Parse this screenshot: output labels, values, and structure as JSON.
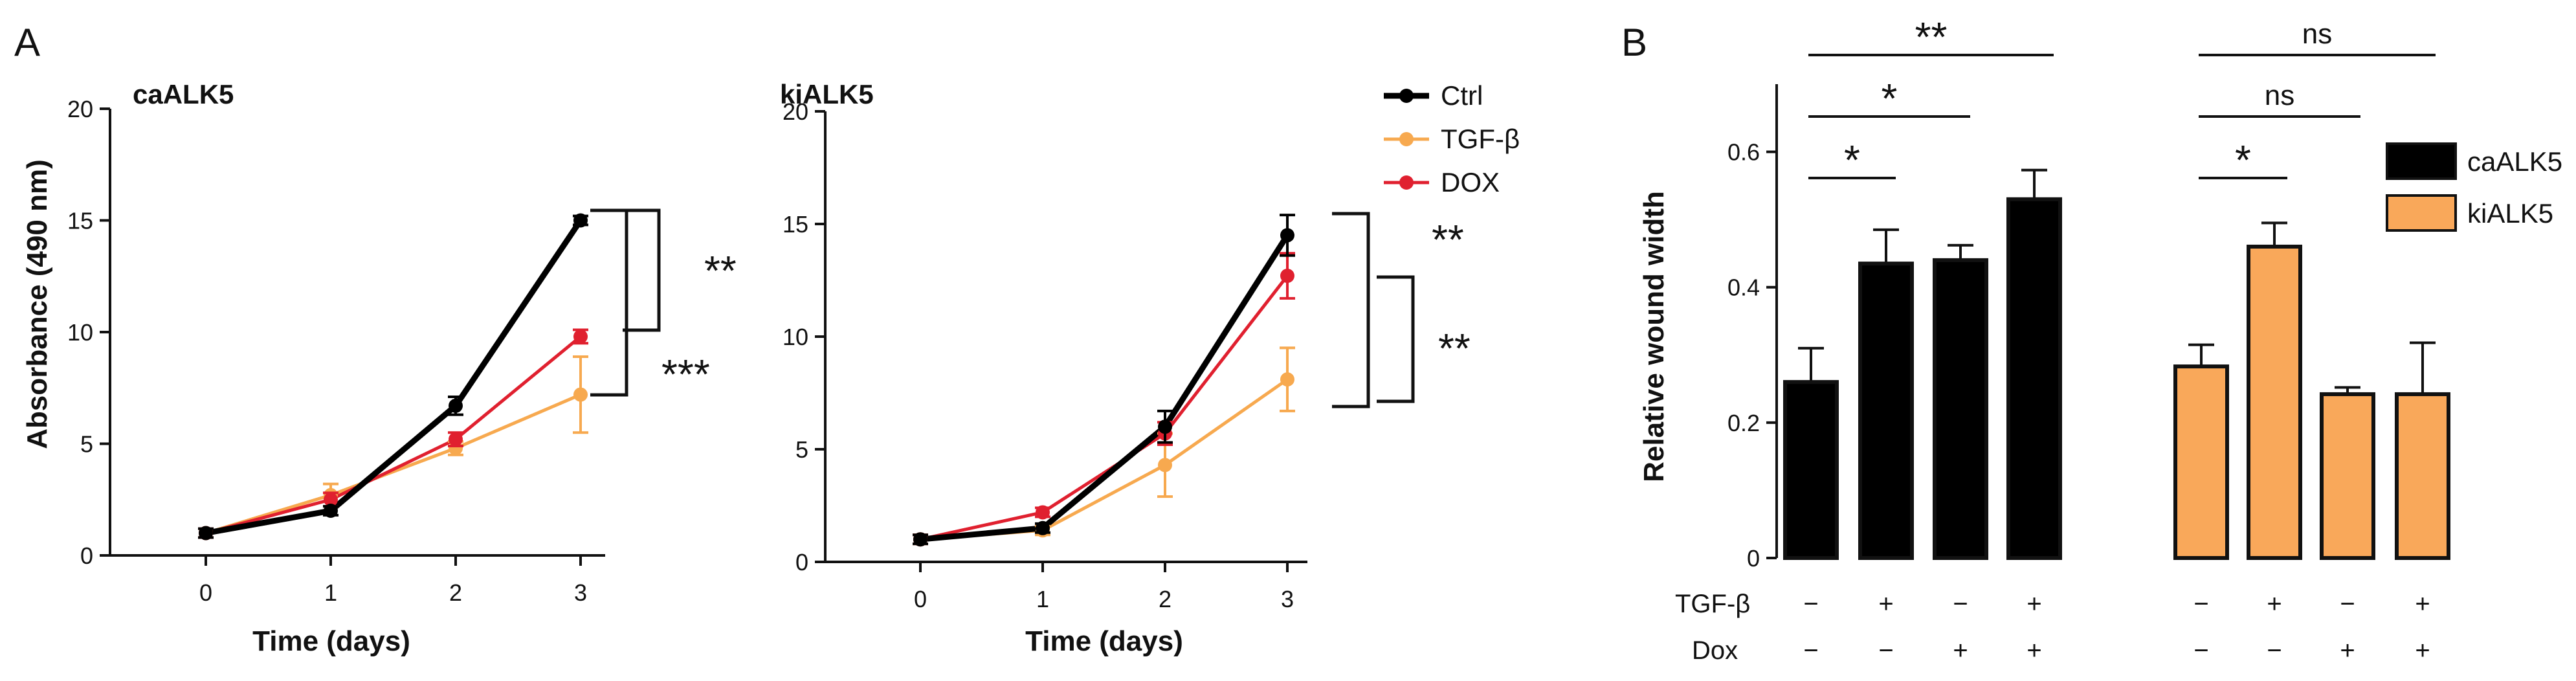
{
  "panels": {
    "a_letter": "A",
    "b_letter": "B"
  },
  "chart_data": [
    {
      "type": "line",
      "title": "caALK5",
      "xlabel": "Time (days)",
      "ylabel": "Absorbance (490 nm)",
      "x": [
        0,
        1,
        2,
        3
      ],
      "xticks": [
        "0",
        "1",
        "2",
        "3"
      ],
      "yticks": [
        "0",
        "5",
        "10",
        "15",
        "20"
      ],
      "ylim": [
        0,
        20
      ],
      "series": [
        {
          "name": "Ctrl",
          "color": "#000000",
          "values": [
            1.0,
            2.0,
            6.7,
            15.0
          ],
          "errors": [
            0.2,
            0.2,
            0.4,
            0.2
          ]
        },
        {
          "name": "TGF-β",
          "color": "#f7a94f",
          "values": [
            1.0,
            2.7,
            4.8,
            7.2
          ],
          "errors": [
            0.2,
            0.5,
            0.3,
            1.7
          ]
        },
        {
          "name": "DOX",
          "color": "#e0202f",
          "values": [
            1.0,
            2.5,
            5.2,
            9.8
          ],
          "errors": [
            0.2,
            0.3,
            0.3,
            0.3
          ]
        }
      ],
      "significance": [
        "**",
        "***"
      ]
    },
    {
      "type": "line",
      "title": "kiALK5",
      "xlabel": "Time (days)",
      "ylabel": "",
      "x": [
        0,
        1,
        2,
        3
      ],
      "xticks": [
        "0",
        "1",
        "2",
        "3"
      ],
      "yticks": [
        "0",
        "5",
        "10",
        "15",
        "20"
      ],
      "ylim": [
        0,
        20
      ],
      "legend": [
        "Ctrl",
        "TGF-β",
        "DOX"
      ],
      "series": [
        {
          "name": "Ctrl",
          "color": "#000000",
          "values": [
            1.0,
            1.5,
            6.0,
            14.5
          ],
          "errors": [
            0.2,
            0.2,
            0.7,
            0.9
          ]
        },
        {
          "name": "TGF-β",
          "color": "#f7a94f",
          "values": [
            1.0,
            1.4,
            4.3,
            8.1
          ],
          "errors": [
            0.2,
            0.2,
            1.4,
            1.4
          ]
        },
        {
          "name": "DOX",
          "color": "#e0202f",
          "values": [
            1.0,
            2.2,
            5.7,
            12.7
          ],
          "errors": [
            0.2,
            0.2,
            0.5,
            1.0
          ]
        }
      ],
      "significance": [
        "**",
        "**"
      ]
    },
    {
      "type": "bar",
      "title": "",
      "ylabel": "Relative wound width",
      "yticks": [
        "0",
        "0.2",
        "0.4",
        "0.6"
      ],
      "ylim": [
        0,
        0.7
      ],
      "legend": [
        "caALK5",
        "kiALK5"
      ],
      "row_labels": [
        "TGF-β",
        "Dox"
      ],
      "tgf": [
        "−",
        "+",
        "−",
        "+",
        "−",
        "+",
        "−",
        "+"
      ],
      "dox": [
        "−",
        "−",
        "+",
        "+",
        "−",
        "−",
        "+",
        "+"
      ],
      "series": [
        {
          "name": "caALK5",
          "color": "#000000",
          "values": [
            0.26,
            0.435,
            0.44,
            0.53
          ],
          "errors": [
            0.05,
            0.05,
            0.022,
            0.043
          ]
        },
        {
          "name": "kiALK5",
          "color": "#f9a85a",
          "values": [
            0.283,
            0.46,
            0.242,
            0.242
          ],
          "errors": [
            0.032,
            0.035,
            0.01,
            0.076
          ]
        }
      ],
      "significance": [
        "**",
        "*",
        "*",
        "ns",
        "ns",
        "*"
      ]
    }
  ]
}
